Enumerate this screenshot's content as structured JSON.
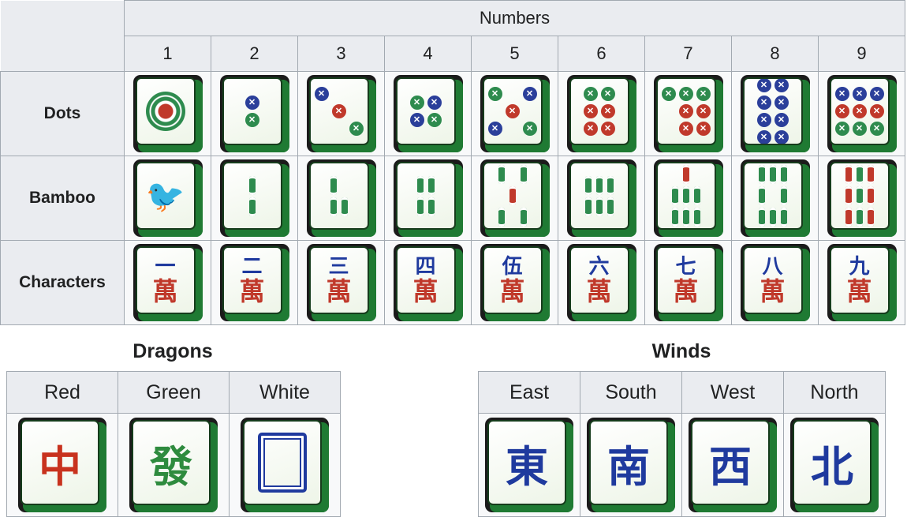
{
  "suits": {
    "numbers_header": "Numbers",
    "numbers": [
      "1",
      "2",
      "3",
      "4",
      "5",
      "6",
      "7",
      "8",
      "9"
    ],
    "rows": [
      {
        "label": "Dots",
        "kind": "dots"
      },
      {
        "label": "Bamboo",
        "kind": "bamboo"
      },
      {
        "label": "Characters",
        "kind": "characters",
        "numerals": [
          "一",
          "二",
          "三",
          "四",
          "伍",
          "六",
          "七",
          "八",
          "九"
        ],
        "wan": "萬"
      }
    ]
  },
  "dragons": {
    "title": "Dragons",
    "headers": [
      "Red",
      "Green",
      "White"
    ],
    "tiles": [
      {
        "glyph": "中",
        "color": "#c8321e"
      },
      {
        "glyph": "發",
        "color": "#2e8b3e"
      },
      {
        "glyph": "",
        "color": "#1f3a9e"
      }
    ]
  },
  "winds": {
    "title": "Winds",
    "headers": [
      "East",
      "South",
      "West",
      "North"
    ],
    "tiles": [
      {
        "glyph": "東"
      },
      {
        "glyph": "南"
      },
      {
        "glyph": "西"
      },
      {
        "glyph": "北"
      }
    ]
  },
  "colors": {
    "tile_back": "#1f7a33",
    "dot_green": "#2e8b4e",
    "dot_blue": "#2b3f9a",
    "dot_red": "#c0392b",
    "character_blue": "#1f3a9e",
    "character_red": "#c0392b"
  }
}
